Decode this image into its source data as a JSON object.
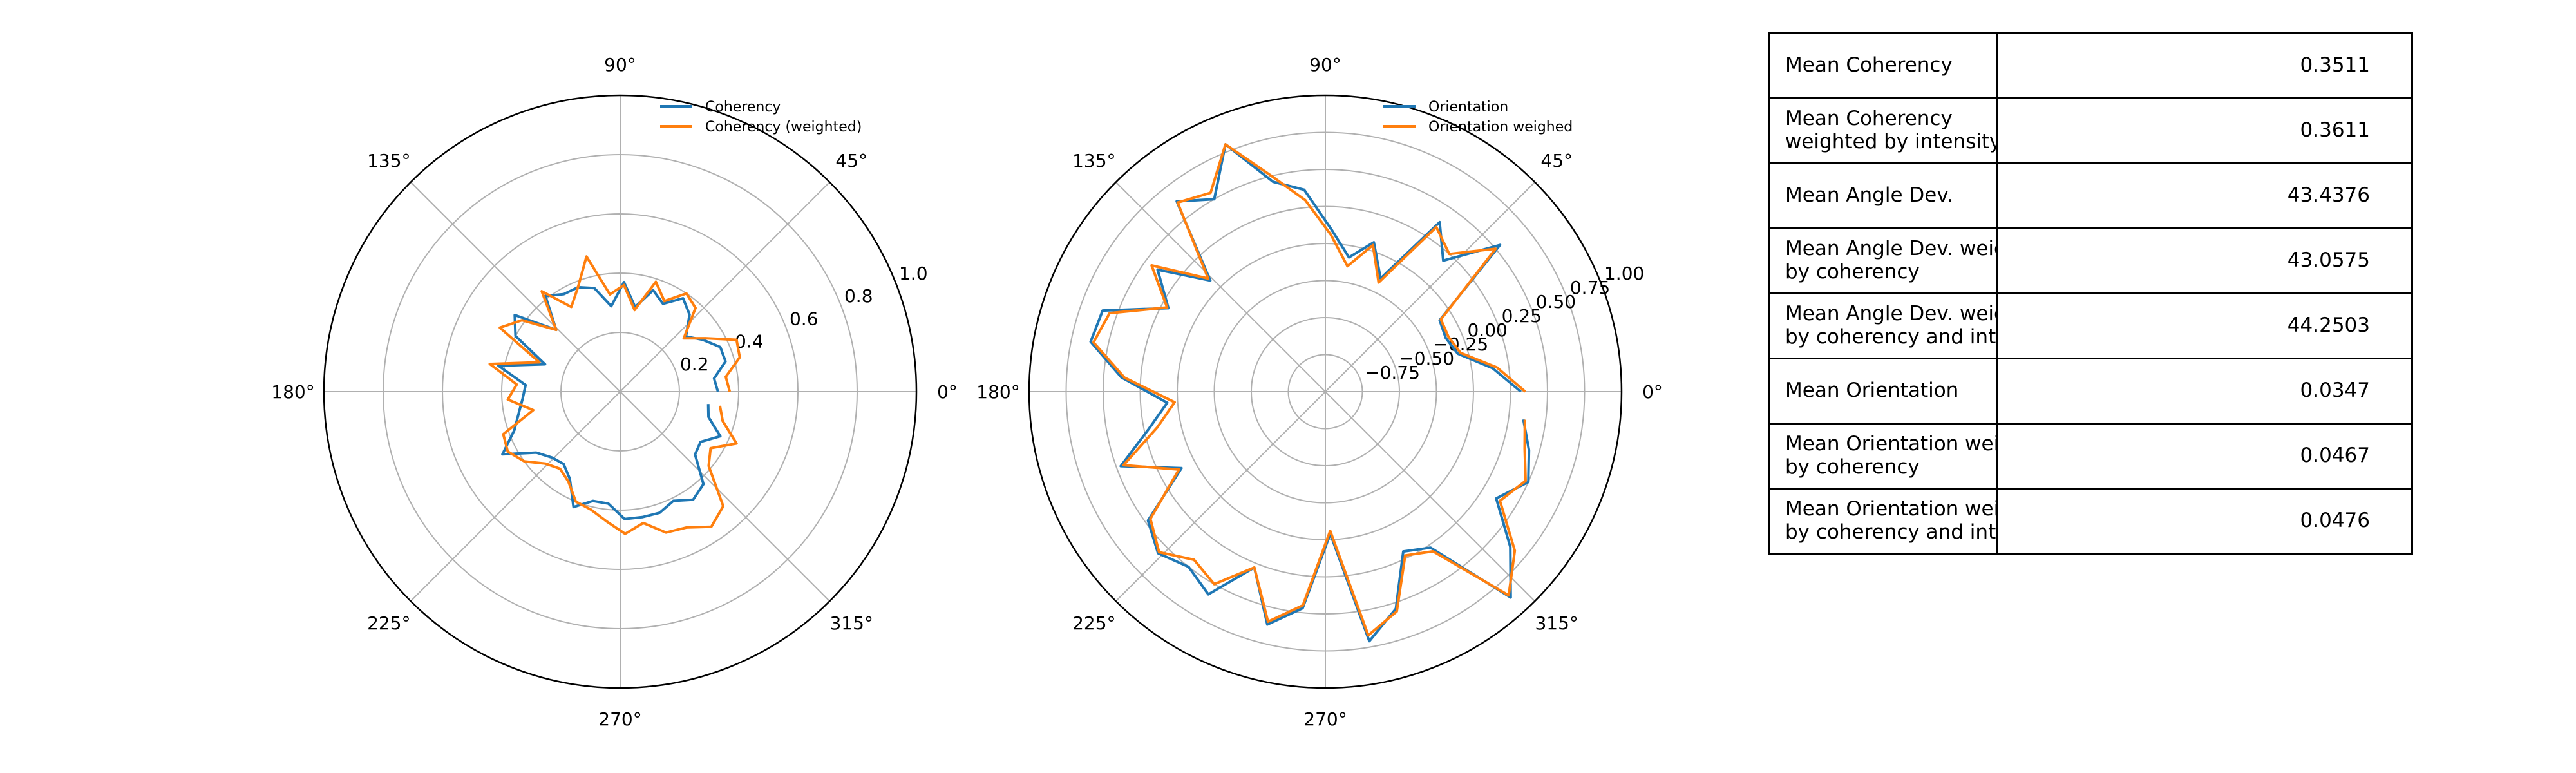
{
  "chart_data": [
    {
      "type": "line",
      "projection": "polar",
      "theta_unit": "degrees",
      "theta_tick_labels": [
        "0°",
        "45°",
        "90°",
        "135°",
        "180°",
        "225°",
        "270°",
        "315°"
      ],
      "r_range": [
        0,
        1.0
      ],
      "r_ticks": [
        0.2,
        0.4,
        0.6,
        0.8,
        1.0
      ],
      "r_tick_labels": [
        "0.2",
        "0.4",
        "0.6",
        "0.8",
        "1.0"
      ],
      "grid": true,
      "legend_position": "top-right",
      "theta": [
        0,
        8,
        16,
        24,
        32,
        40,
        48,
        56,
        64,
        72,
        80,
        88,
        96,
        104,
        112,
        120,
        128,
        136,
        144,
        152,
        160,
        168,
        176,
        184,
        192,
        200,
        208,
        216,
        224,
        232,
        240,
        248,
        256,
        264,
        272,
        280,
        288,
        296,
        304,
        312,
        320,
        328,
        336,
        344,
        352
      ],
      "series": [
        {
          "name": "Coherency",
          "color": "#1f77b4",
          "values": [
            0.33,
            0.32,
            0.37,
            0.37,
            0.33,
            0.29,
            0.35,
            0.38,
            0.33,
            0.36,
            0.29,
            0.37,
            0.29,
            0.36,
            0.38,
            0.38,
            0.41,
            0.3,
            0.44,
            0.4,
            0.27,
            0.42,
            0.32,
            0.33,
            0.35,
            0.38,
            0.45,
            0.35,
            0.32,
            0.31,
            0.34,
            0.42,
            0.38,
            0.38,
            0.43,
            0.43,
            0.43,
            0.41,
            0.44,
            0.42,
            0.33,
            0.32,
            0.37,
            0.31,
            0.3
          ]
        },
        {
          "name": "Coherency (weighted)",
          "color": "#ff7f0e",
          "values": [
            0.37,
            0.36,
            0.42,
            0.43,
            0.34,
            0.28,
            0.38,
            0.4,
            0.34,
            0.39,
            0.28,
            0.36,
            0.33,
            0.47,
            0.38,
            0.33,
            0.43,
            0.3,
            0.41,
            0.46,
            0.29,
            0.45,
            0.35,
            0.38,
            0.3,
            0.42,
            0.43,
            0.4,
            0.35,
            0.33,
            0.35,
            0.4,
            0.41,
            0.44,
            0.48,
            0.45,
            0.5,
            0.51,
            0.55,
            0.52,
            0.39,
            0.36,
            0.43,
            0.36,
            0.34
          ]
        }
      ]
    },
    {
      "type": "line",
      "projection": "polar",
      "theta_unit": "degrees",
      "theta_tick_labels": [
        "0°",
        "45°",
        "90°",
        "135°",
        "180°",
        "225°",
        "270°",
        "315°"
      ],
      "r_range": [
        -1.0,
        1.0
      ],
      "r_ticks": [
        -0.75,
        -0.5,
        -0.25,
        0.0,
        0.25,
        0.5,
        0.75,
        1.0
      ],
      "r_tick_labels": [
        "−0.75",
        "−0.50",
        "−0.25",
        "0.00",
        "0.25",
        "0.50",
        "0.75",
        "1.00"
      ],
      "grid": true,
      "legend_position": "top-right",
      "theta": [
        0,
        8,
        16,
        24,
        32,
        40,
        48,
        56,
        64,
        72,
        80,
        88,
        96,
        104,
        112,
        120,
        128,
        136,
        144,
        152,
        160,
        168,
        176,
        184,
        192,
        200,
        208,
        216,
        224,
        232,
        240,
        248,
        256,
        264,
        272,
        280,
        288,
        296,
        304,
        312,
        320,
        328,
        336,
        344,
        352
      ],
      "series": [
        {
          "name": "Orientation",
          "color": "#1f77b4",
          "values": [
            0.32,
            0.14,
            -0.07,
            -0.11,
            -0.09,
            0.54,
            0.19,
            0.38,
            -0.15,
            0.06,
            -0.08,
            0.1,
            0.37,
            0.46,
            0.8,
            0.5,
            0.63,
            0.08,
            0.4,
            0.2,
            0.6,
            0.62,
            0.38,
            0.07,
            0.22,
            0.47,
            0.1,
            0.48,
            0.57,
            0.5,
            0.58,
            0.28,
            0.62,
            0.47,
            -0.04,
            0.71,
            0.54,
            0.2,
            0.27,
            0.87,
            0.63,
            0.36,
            0.5,
            0.43,
            0.35
          ]
        },
        {
          "name": "Orientation weighed",
          "color": "#ff7f0e",
          "values": [
            0.35,
            0.17,
            -0.05,
            -0.09,
            -0.08,
            0.5,
            0.25,
            0.34,
            -0.18,
            0.04,
            -0.14,
            0.06,
            0.3,
            0.5,
            0.8,
            0.55,
            0.62,
            0.1,
            0.45,
            0.21,
            0.55,
            0.6,
            0.36,
            0.02,
            0.16,
            0.45,
            0.12,
            0.46,
            0.56,
            0.44,
            0.5,
            0.28,
            0.6,
            0.45,
            -0.06,
            0.67,
            0.56,
            0.23,
            0.3,
            0.85,
            0.67,
            0.39,
            0.48,
            0.4,
            0.36
          ]
        }
      ]
    },
    {
      "type": "table",
      "rows": [
        {
          "label": "Mean Coherency",
          "value": "0.3511"
        },
        {
          "label": "Mean Coherency\nweighted by intensity",
          "value": "0.3611"
        },
        {
          "label": "Mean Angle Dev.",
          "value": "43.4376"
        },
        {
          "label": "Mean Angle Dev. weighted\nby coherency",
          "value": "43.0575"
        },
        {
          "label": "Mean Angle Dev. weighted\nby coherency and intensity",
          "value": "44.2503"
        },
        {
          "label": "Mean Orientation",
          "value": "0.0347"
        },
        {
          "label": "Mean Orientation weighted\nby coherency",
          "value": "0.0467"
        },
        {
          "label": "Mean Orientation weighted\nby coherency and intensity",
          "value": "0.0476"
        }
      ]
    }
  ]
}
